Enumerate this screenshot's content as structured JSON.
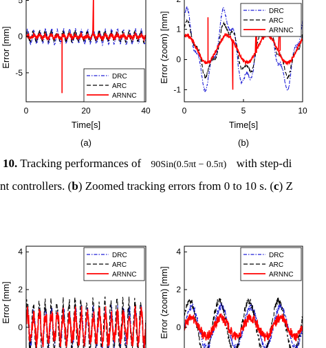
{
  "caption": {
    "line1_prefix": "10.",
    "line1_text": "Tracking performances of",
    "line1_formula": "90Sin(0.5πt − 0.5π)",
    "line1_suffix": "with step-di",
    "line2_pre": "nt controllers. (",
    "line2_b": "b",
    "line2_mid": ") Zoomed tracking errors from 0 to 10 s. (",
    "line2_c": "c",
    "line2_end": ") Z"
  },
  "colors": {
    "DRC": "#1f1fd6",
    "ARC": "#000000",
    "ARNNC": "#ff0000"
  },
  "chart_data": [
    {
      "id": "a",
      "type": "line",
      "panel_label": "(a)",
      "xlabel": "Time[s]",
      "ylabel": "Error [mm]",
      "xlim": [
        0,
        40
      ],
      "ylim": [
        -9,
        6
      ],
      "xticks": [
        0,
        20,
        40
      ],
      "xtick_labels": [
        "0",
        "20",
        "40"
      ],
      "yticks": [
        -5,
        0,
        5
      ],
      "ytick_labels": [
        "-5",
        "0",
        "5"
      ],
      "legend": "bottom-right",
      "series": [
        {
          "name": "DRC",
          "style": "dashdot",
          "waves": [
            {
              "amp": 0.9,
              "period": 2.0
            }
          ],
          "noise": 0.3,
          "spikes": []
        },
        {
          "name": "ARC",
          "style": "dashed",
          "waves": [
            {
              "amp": 0.6,
              "period": 2.0,
              "phase": 0.5
            }
          ],
          "noise": 0.25,
          "spikes": []
        },
        {
          "name": "ARNNC",
          "style": "solid",
          "waves": [
            {
              "amp": 0.2,
              "period": 2.0
            }
          ],
          "noise": 0.3,
          "spikes": [
            {
              "t": 12,
              "v": -7.8
            },
            {
              "t": 22.5,
              "v": 6.0
            }
          ]
        }
      ]
    },
    {
      "id": "b",
      "type": "line",
      "panel_label": "(b)",
      "xlabel": "Time[s]",
      "ylabel": "Error (zoom) [mm]",
      "xlim": [
        0,
        10
      ],
      "ylim": [
        -1.4,
        2.2
      ],
      "xticks": [
        0,
        5,
        10
      ],
      "xtick_labels": [
        "0",
        "5",
        "10"
      ],
      "yticks": [
        -1,
        0,
        1,
        2
      ],
      "ytick_labels": [
        "-1",
        "0",
        "1",
        "2"
      ],
      "legend": "top-right",
      "series": [
        {
          "name": "DRC",
          "style": "dashdot",
          "waves": [
            {
              "amp": 1.1,
              "period": 3.4,
              "phase": 1.4
            },
            {
              "amp": 0.3,
              "period": 1.0
            }
          ],
          "offset": 0.35,
          "noise": 0.06,
          "spikes": []
        },
        {
          "name": "ARC",
          "style": "dashed",
          "waves": [
            {
              "amp": 0.75,
              "period": 3.4,
              "phase": 1.2
            },
            {
              "amp": 0.2,
              "period": 1.0
            }
          ],
          "offset": 0.35,
          "noise": 0.05,
          "spikes": []
        },
        {
          "name": "ARNNC",
          "style": "solid",
          "waves": [
            {
              "amp": 0.45,
              "period": 3.4,
              "phase": 1.2
            }
          ],
          "offset": 0.35,
          "noise": 0.05,
          "spikes": [
            {
              "t": 2.0,
              "v": 1.4
            },
            {
              "t": 4.1,
              "v": -1.0
            },
            {
              "t": 6.1,
              "v": 1.6
            },
            {
              "t": 8.1,
              "v": 1.8
            }
          ]
        }
      ]
    },
    {
      "id": "d",
      "type": "line",
      "ylabel": "Error [mm]",
      "xlim": [
        0,
        40
      ],
      "ylim": [
        -1.9,
        4.3
      ],
      "yticks": [
        0,
        2,
        4
      ],
      "ytick_labels": [
        "0",
        "2",
        "4"
      ],
      "legend": "top-right",
      "series": [
        {
          "name": "DRC",
          "style": "dashdot",
          "waves": [
            {
              "amp": 0.9,
              "period": 2.0
            }
          ],
          "noise": 0.35,
          "spikes": []
        },
        {
          "name": "ARC",
          "style": "dashed",
          "waves": [
            {
              "amp": 1.3,
              "period": 2.0,
              "phase": 0.5
            }
          ],
          "noise": 0.35,
          "spikes": []
        },
        {
          "name": "ARNNC",
          "style": "solid",
          "waves": [
            {
              "amp": 0.7,
              "period": 2.0
            }
          ],
          "noise": 0.45,
          "spikes": []
        }
      ]
    },
    {
      "id": "e",
      "type": "line",
      "ylabel": "Error (zoom) [mm]",
      "xlim": [
        0,
        10
      ],
      "ylim": [
        -1.9,
        4.3
      ],
      "yticks": [
        0,
        2,
        4
      ],
      "ytick_labels": [
        "0",
        "2",
        "4"
      ],
      "legend": "top-right",
      "series": [
        {
          "name": "DRC",
          "style": "dashdot",
          "waves": [
            {
              "amp": 1.1,
              "period": 2.5
            }
          ],
          "noise": 0.2,
          "spikes": []
        },
        {
          "name": "ARC",
          "style": "dashed",
          "waves": [
            {
              "amp": 1.4,
              "period": 2.5,
              "phase": 0.4
            }
          ],
          "noise": 0.2,
          "spikes": []
        },
        {
          "name": "ARNNC",
          "style": "solid",
          "waves": [
            {
              "amp": 0.5,
              "period": 2.5
            }
          ],
          "noise": 0.25,
          "spikes": []
        }
      ]
    }
  ]
}
